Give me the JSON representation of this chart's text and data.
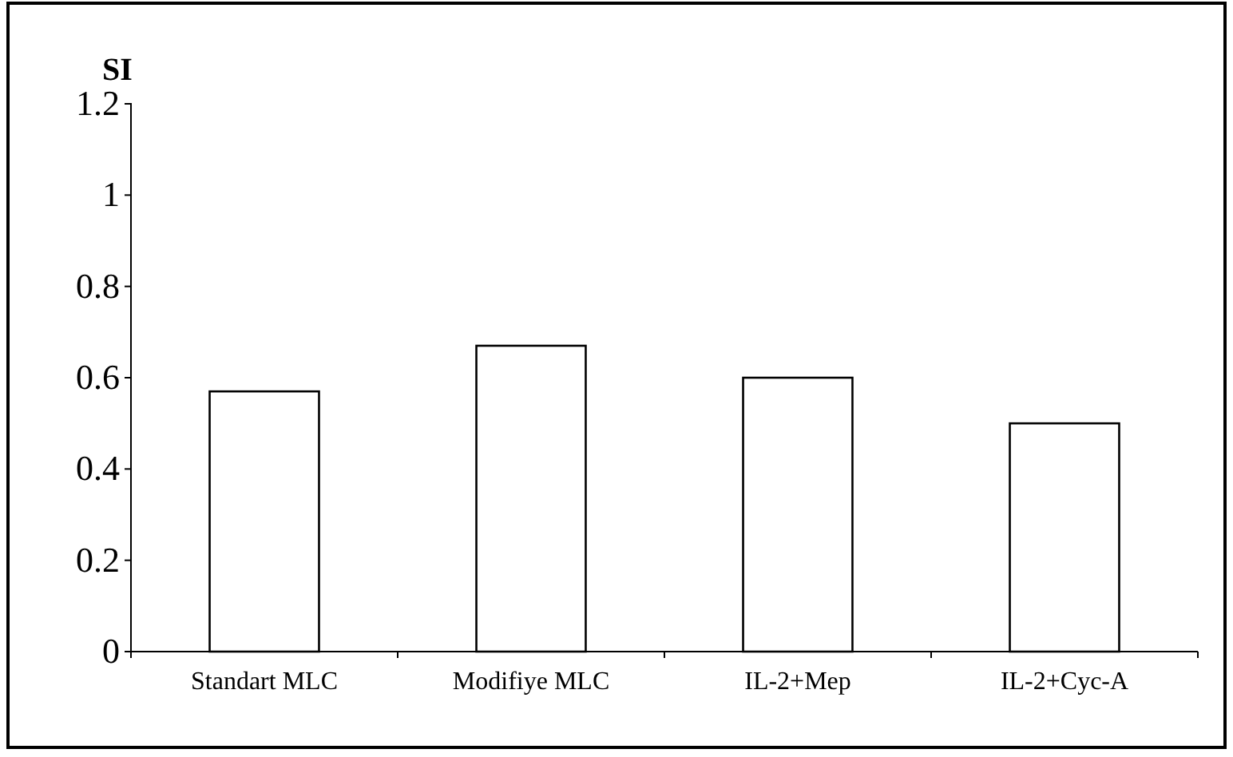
{
  "chart_data": {
    "type": "bar",
    "ylabel": "SI",
    "categories": [
      "Standart MLC",
      "Modifiye MLC",
      "IL-2+Mep",
      "IL-2+Cyc-A"
    ],
    "values": [
      0.57,
      0.67,
      0.6,
      0.5
    ],
    "color": "#ffffff",
    "ylim": [
      0,
      1.2
    ],
    "yticks": [
      0,
      0.2,
      0.4,
      0.6,
      0.8,
      1,
      1.2
    ],
    "grid": false
  }
}
